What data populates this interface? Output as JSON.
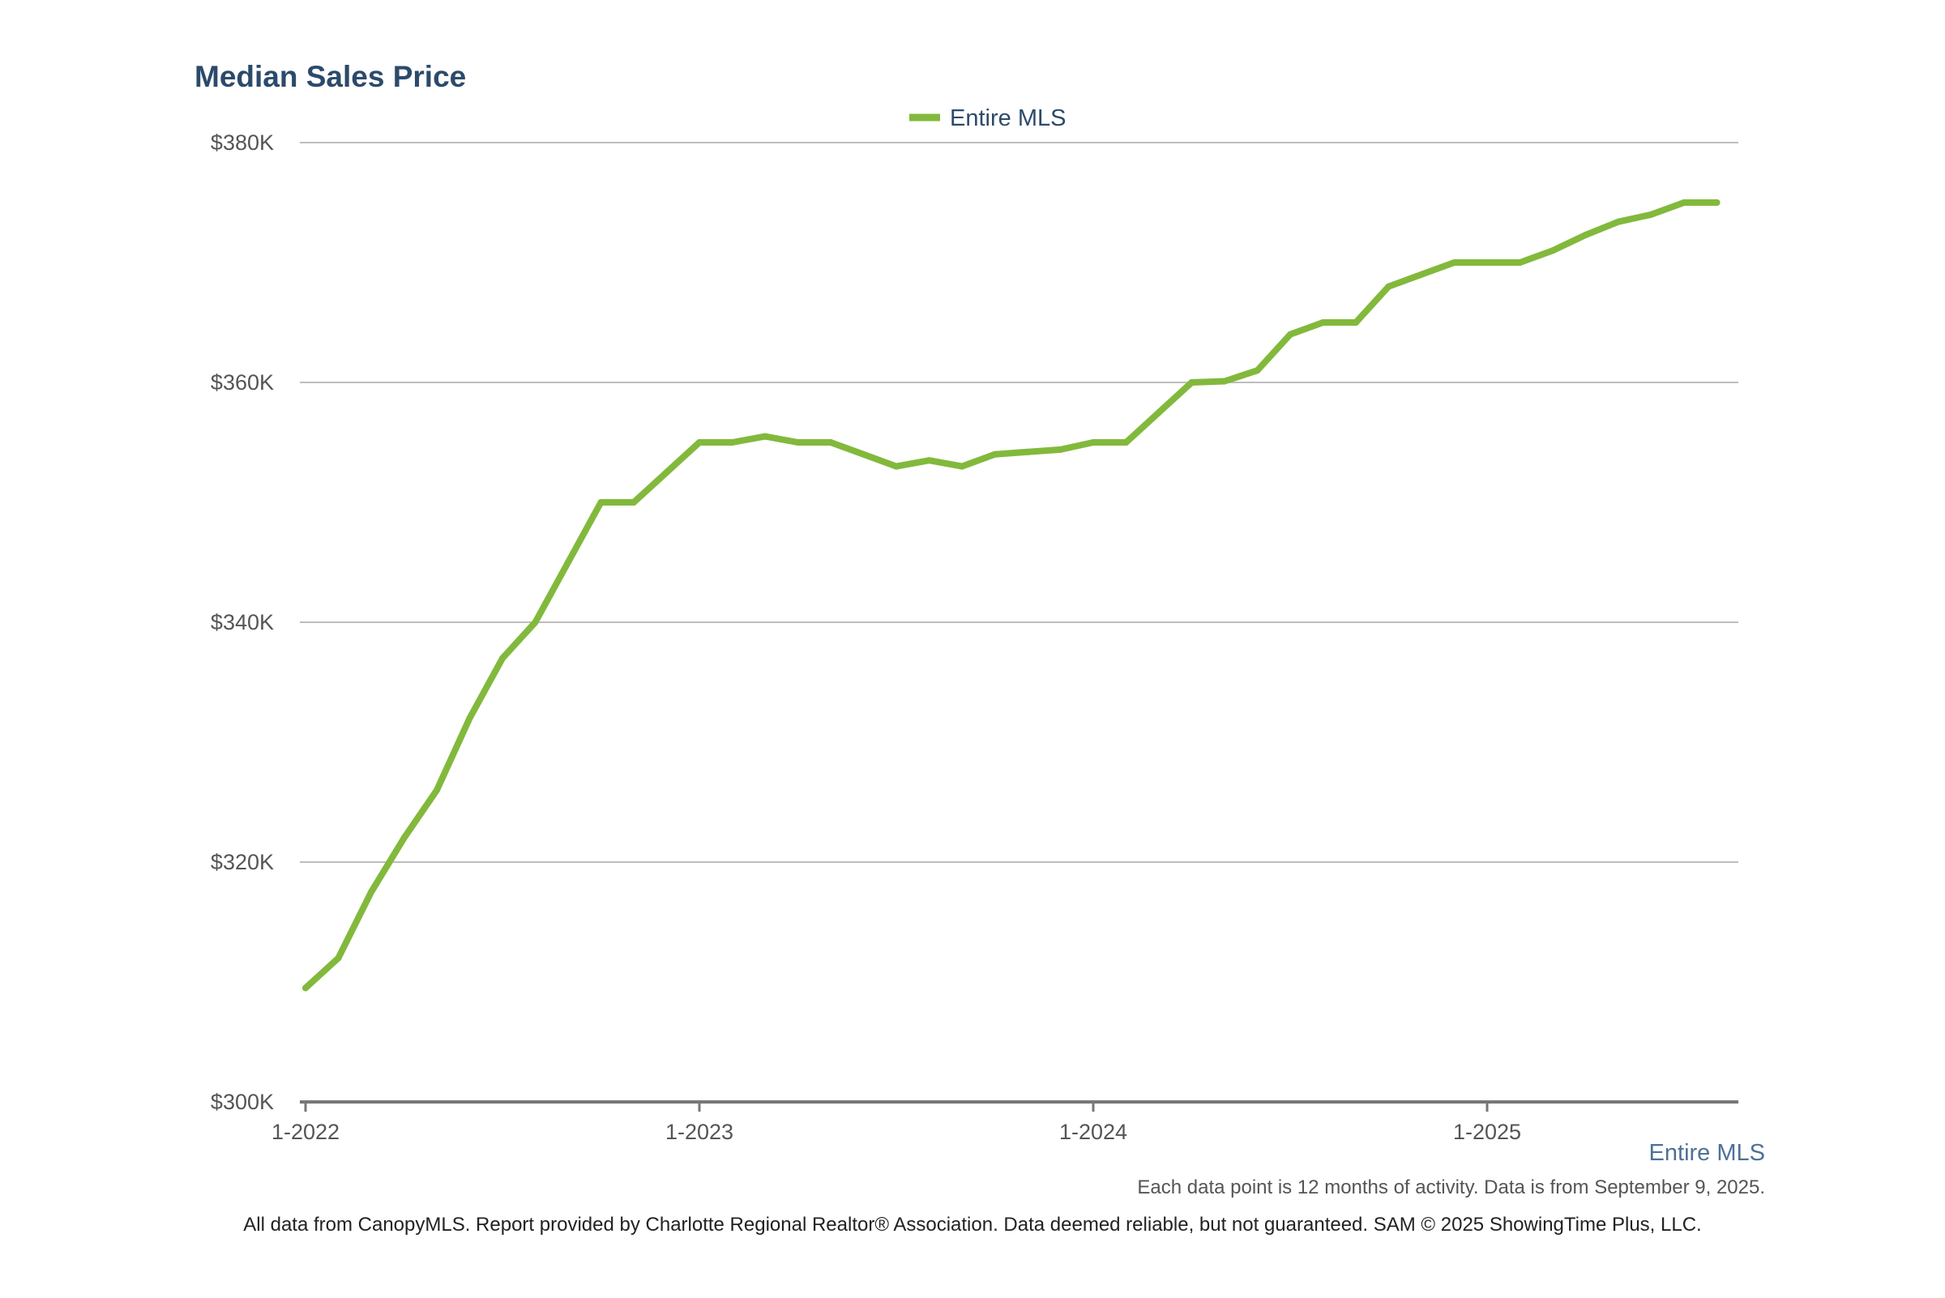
{
  "colors": {
    "title": "#2c4a6b",
    "series": "#82b93c",
    "grid": "#bdbdbd",
    "axis": "#777777",
    "tick_text": "#555555",
    "footer_series": "#4e7196"
  },
  "footer": {
    "series_name": "Entire MLS",
    "note": "Each data point is 12 months of activity. Data is from September 9, 2025.",
    "credit": "All data from CanopyMLS. Report provided by Charlotte Regional Realtor® Association. Data deemed reliable, but not guaranteed. SAM © 2025 ShowingTime Plus, LLC."
  },
  "chart_data": {
    "type": "line",
    "title": "Median Sales Price",
    "xlabel": "",
    "ylabel": "",
    "x_tick_labels": [
      "1-2022",
      "1-2023",
      "1-2024",
      "1-2025"
    ],
    "y_tick_labels": [
      "$300K",
      "$320K",
      "$340K",
      "$360K",
      "$380K"
    ],
    "y_ticks": [
      300000,
      320000,
      340000,
      360000,
      380000
    ],
    "ylim": [
      300000,
      380000
    ],
    "grid": true,
    "legend": "top-center",
    "x": [
      "2022-01",
      "2022-02",
      "2022-03",
      "2022-04",
      "2022-05",
      "2022-06",
      "2022-07",
      "2022-08",
      "2022-09",
      "2022-10",
      "2022-11",
      "2022-12",
      "2023-01",
      "2023-02",
      "2023-03",
      "2023-04",
      "2023-05",
      "2023-06",
      "2023-07",
      "2023-08",
      "2023-09",
      "2023-10",
      "2023-11",
      "2023-12",
      "2024-01",
      "2024-02",
      "2024-03",
      "2024-04",
      "2024-05",
      "2024-06",
      "2024-07",
      "2024-08",
      "2024-09",
      "2024-10",
      "2024-11",
      "2024-12",
      "2025-01",
      "2025-02",
      "2025-03",
      "2025-04",
      "2025-05",
      "2025-06",
      "2025-07",
      "2025-08"
    ],
    "series": [
      {
        "name": "Entire MLS",
        "color": "#82b93c",
        "values": [
          309500,
          312000,
          317500,
          322000,
          326000,
          332000,
          337000,
          340000,
          345000,
          350000,
          350000,
          352500,
          355000,
          355000,
          355500,
          355000,
          355000,
          354000,
          353000,
          353500,
          353000,
          354000,
          354200,
          354400,
          355000,
          355000,
          357500,
          360000,
          360100,
          361000,
          364000,
          365000,
          365000,
          368000,
          369000,
          370000,
          370000,
          370000,
          371000,
          372300,
          373400,
          374000,
          375000,
          375000
        ]
      }
    ]
  }
}
